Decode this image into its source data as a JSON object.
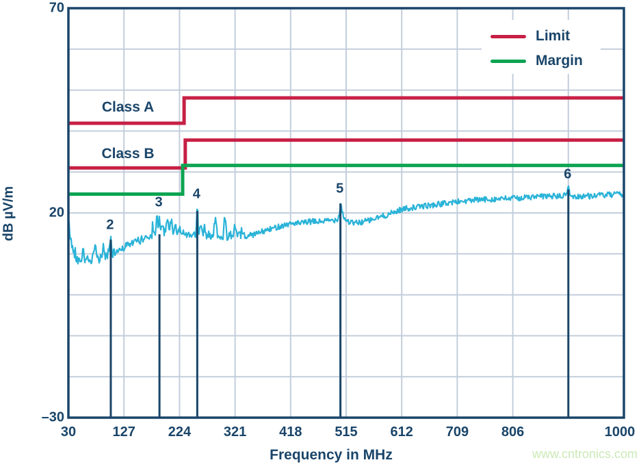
{
  "colors": {
    "navy": "#1a4569",
    "grid": "#c3cedb",
    "limit_red": "#c72045",
    "margin_green": "#0ea452",
    "trace_cyan": "#2ab3d8",
    "watermark_green": "#cbe9b6",
    "background": "#ffffff"
  },
  "labels": {
    "x_axis": "Frequency in MHz",
    "y_axis": "dB µV/m",
    "class_a": "Class A",
    "class_b": "Class B",
    "watermark": "www.cntronics.com"
  },
  "chart_data": {
    "type": "line",
    "title": "",
    "xlabel": "Frequency in MHz",
    "ylabel": "dB µV/m",
    "xlim": [
      30,
      1000
    ],
    "ylim": [
      -30,
      70
    ],
    "grid": true,
    "x_ticks": [
      {
        "value": 30,
        "label": "30"
      },
      {
        "value": 127,
        "label": "127"
      },
      {
        "value": 224,
        "label": "224"
      },
      {
        "value": 321,
        "label": "321"
      },
      {
        "value": 418,
        "label": "418"
      },
      {
        "value": 515,
        "label": "515"
      },
      {
        "value": 612,
        "label": "612"
      },
      {
        "value": 709,
        "label": "709"
      },
      {
        "value": 806,
        "label": "806"
      },
      {
        "value": 1000,
        "label": "1000"
      }
    ],
    "y_ticks": [
      {
        "value": 70,
        "label": "70"
      },
      {
        "value": 20,
        "label": "20"
      },
      {
        "value": -30,
        "label": "–30"
      }
    ],
    "x_gridlines_mhz": [
      127,
      224,
      321,
      418,
      515,
      612,
      709,
      806,
      903
    ],
    "y_gridlines_db": [
      60,
      50,
      40,
      30,
      20,
      10,
      0,
      -10,
      -20
    ],
    "legend": {
      "position": "top-right",
      "entries": [
        {
          "label": "Limit",
          "color": "#c72045"
        },
        {
          "label": "Margin",
          "color": "#0ea452"
        }
      ]
    },
    "limit_lines": [
      {
        "name": "class-a",
        "label": "Class A",
        "color": "#c72045",
        "step_mhz": 232,
        "before_db": 41.9,
        "after_db": 48.1
      },
      {
        "name": "class-b",
        "label": "Class B",
        "color": "#c72045",
        "step_mhz": 234,
        "before_db": 31.0,
        "after_db": 37.8
      },
      {
        "name": "margin",
        "label": "Margin",
        "color": "#0ea452",
        "step_mhz": 229.5,
        "before_db": 24.6,
        "after_db": 31.6
      }
    ],
    "markers": [
      {
        "label": "2",
        "mhz": 104,
        "line_db": 13.5,
        "label_db": 17.0
      },
      {
        "label": "3",
        "mhz": 189,
        "line_db": 14.8,
        "label_db": 22.5
      },
      {
        "label": "4",
        "mhz": 255,
        "line_db": 20.5,
        "label_db": 24.5
      },
      {
        "label": "5",
        "mhz": 505,
        "line_db": 22.3,
        "label_db": 25.8
      },
      {
        "label": "6",
        "mhz": 903,
        "line_db": 25.7,
        "label_db": 29.3
      }
    ],
    "trace": {
      "name": "measured-emissions",
      "color": "#2ab3d8",
      "points_mhz_db": [
        [
          30,
          18.5
        ],
        [
          33,
          14.5
        ],
        [
          36,
          12.0
        ],
        [
          40,
          10.3
        ],
        [
          44,
          9.0
        ],
        [
          48,
          8.3
        ],
        [
          52,
          8.0
        ],
        [
          56,
          11.6
        ],
        [
          58,
          9.0
        ],
        [
          61,
          7.8
        ],
        [
          64,
          8.8
        ],
        [
          67,
          7.7
        ],
        [
          70,
          8.2
        ],
        [
          74,
          9.5
        ],
        [
          77,
          12.4
        ],
        [
          80,
          8.8
        ],
        [
          84,
          8.6
        ],
        [
          88,
          9.4
        ],
        [
          91,
          12.2
        ],
        [
          94,
          9.2
        ],
        [
          98,
          9.6
        ],
        [
          101,
          10.4
        ],
        [
          104,
          13.6
        ],
        [
          106,
          10.0
        ],
        [
          110,
          10.2
        ],
        [
          115,
          10.6
        ],
        [
          120,
          11.2
        ],
        [
          126,
          11.6
        ],
        [
          132,
          12.0
        ],
        [
          138,
          12.4
        ],
        [
          145,
          12.8
        ],
        [
          152,
          13.2
        ],
        [
          158,
          13.5
        ],
        [
          164,
          13.8
        ],
        [
          170,
          14.2
        ],
        [
          176,
          14.8
        ],
        [
          180,
          16.4
        ],
        [
          182,
          14.9
        ],
        [
          185,
          19.6
        ],
        [
          187,
          15.2
        ],
        [
          189,
          20.3
        ],
        [
          191,
          15.3
        ],
        [
          194,
          18.0
        ],
        [
          197,
          15.0
        ],
        [
          200,
          15.4
        ],
        [
          203,
          19.0
        ],
        [
          206,
          15.1
        ],
        [
          210,
          18.6
        ],
        [
          213,
          14.9
        ],
        [
          217,
          17.2
        ],
        [
          220,
          14.7
        ],
        [
          224,
          16.2
        ],
        [
          228,
          14.5
        ],
        [
          232,
          15.8
        ],
        [
          236,
          14.3
        ],
        [
          240,
          14.4
        ],
        [
          245,
          14.6
        ],
        [
          250,
          14.5
        ],
        [
          253,
          14.6
        ],
        [
          255,
          21.7
        ],
        [
          257,
          14.4
        ],
        [
          261,
          17.9
        ],
        [
          264,
          14.3
        ],
        [
          268,
          16.8
        ],
        [
          271,
          14.2
        ],
        [
          275,
          15.4
        ],
        [
          279,
          13.9
        ],
        [
          283,
          15.0
        ],
        [
          287,
          18.8
        ],
        [
          290,
          14.2
        ],
        [
          295,
          14.6
        ],
        [
          300,
          14.4
        ],
        [
          304,
          18.9
        ],
        [
          307,
          14.3
        ],
        [
          312,
          14.8
        ],
        [
          317,
          14.4
        ],
        [
          322,
          17.6
        ],
        [
          325,
          14.1
        ],
        [
          330,
          14.5
        ],
        [
          336,
          14.3
        ],
        [
          342,
          14.4
        ],
        [
          350,
          14.6
        ],
        [
          358,
          14.9
        ],
        [
          366,
          15.3
        ],
        [
          375,
          15.7
        ],
        [
          385,
          16.1
        ],
        [
          395,
          16.6
        ],
        [
          405,
          17.0
        ],
        [
          415,
          17.3
        ],
        [
          425,
          17.5
        ],
        [
          435,
          17.4
        ],
        [
          445,
          17.7
        ],
        [
          455,
          17.9
        ],
        [
          465,
          17.8
        ],
        [
          475,
          18.0
        ],
        [
          485,
          18.1
        ],
        [
          495,
          18.3
        ],
        [
          500,
          18.6
        ],
        [
          503,
          19.5
        ],
        [
          505,
          22.6
        ],
        [
          508,
          20.5
        ],
        [
          511,
          18.9
        ],
        [
          515,
          18.2
        ],
        [
          520,
          17.8
        ],
        [
          527,
          17.5
        ],
        [
          535,
          17.6
        ],
        [
          543,
          17.8
        ],
        [
          552,
          18.1
        ],
        [
          560,
          18.3
        ],
        [
          568,
          18.7
        ],
        [
          576,
          19.1
        ],
        [
          584,
          19.4
        ],
        [
          592,
          19.8
        ],
        [
          600,
          20.2
        ],
        [
          610,
          20.8
        ],
        [
          620,
          21.1
        ],
        [
          630,
          21.3
        ],
        [
          640,
          21.4
        ],
        [
          650,
          21.7
        ],
        [
          660,
          21.8
        ],
        [
          670,
          22.0
        ],
        [
          680,
          22.2
        ],
        [
          690,
          22.4
        ],
        [
          700,
          22.6
        ],
        [
          712,
          22.8
        ],
        [
          724,
          22.9
        ],
        [
          736,
          23.1
        ],
        [
          748,
          23.2
        ],
        [
          760,
          23.3
        ],
        [
          772,
          23.4
        ],
        [
          784,
          23.4
        ],
        [
          796,
          23.5
        ],
        [
          808,
          23.6
        ],
        [
          820,
          23.7
        ],
        [
          832,
          23.8
        ],
        [
          844,
          23.9
        ],
        [
          856,
          24.0
        ],
        [
          868,
          24.1
        ],
        [
          880,
          24.1
        ],
        [
          890,
          24.0
        ],
        [
          896,
          24.2
        ],
        [
          900,
          24.5
        ],
        [
          903,
          26.8
        ],
        [
          906,
          24.3
        ],
        [
          912,
          23.9
        ],
        [
          920,
          24.0
        ],
        [
          930,
          24.2
        ],
        [
          940,
          24.1
        ],
        [
          950,
          24.3
        ],
        [
          960,
          24.3
        ],
        [
          970,
          24.4
        ],
        [
          980,
          24.4
        ],
        [
          990,
          24.5
        ],
        [
          1000,
          24.6
        ]
      ]
    }
  }
}
